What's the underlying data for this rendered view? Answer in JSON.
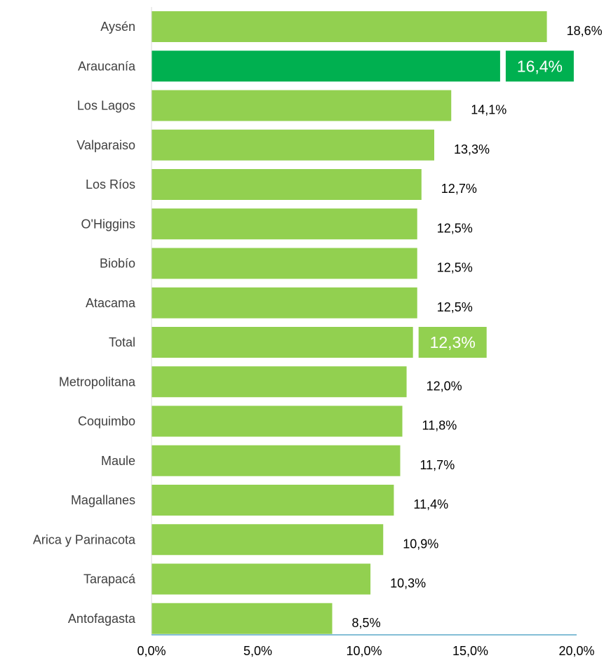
{
  "chart_data": {
    "type": "bar",
    "orientation": "horizontal",
    "categories": [
      "Aysén",
      "Araucanía",
      "Los Lagos",
      "Valparaiso",
      "Los Ríos",
      "O'Higgins",
      "Biobío",
      "Atacama",
      "Total",
      "Metropolitana",
      "Coquimbo",
      "Maule",
      "Magallanes",
      "Arica y Parinacota",
      "Tarapacá",
      "Antofagasta"
    ],
    "values": [
      18.6,
      16.4,
      14.1,
      13.3,
      12.7,
      12.5,
      12.5,
      12.5,
      12.3,
      12.0,
      11.8,
      11.7,
      11.4,
      10.9,
      10.3,
      8.5
    ],
    "value_labels": [
      "18,6%",
      "16,4%",
      "14,1%",
      "13,3%",
      "12,7%",
      "12,5%",
      "12,5%",
      "12,5%",
      "12,3%",
      "12,0%",
      "11,8%",
      "11,7%",
      "11,4%",
      "10,9%",
      "10,3%",
      "8,5%"
    ],
    "highlight": {
      "Araucanía": {
        "bar_color": "#00b050",
        "label_bg": "#00b050",
        "label_color": "#ffffff"
      },
      "Total": {
        "bar_color": "#92d050",
        "label_bg": "#92d050",
        "label_color": "#ffffff"
      }
    },
    "bar_color": "#92d050",
    "xlim": [
      0,
      20
    ],
    "x_ticks": [
      0,
      5,
      10,
      15,
      20
    ],
    "x_tick_labels": [
      "0,0%",
      "5,0%",
      "10,0%",
      "15,0%",
      "20,0%"
    ],
    "axis_color": "#5ba8c8",
    "grid": false,
    "title": "",
    "xlabel": "",
    "ylabel": ""
  }
}
